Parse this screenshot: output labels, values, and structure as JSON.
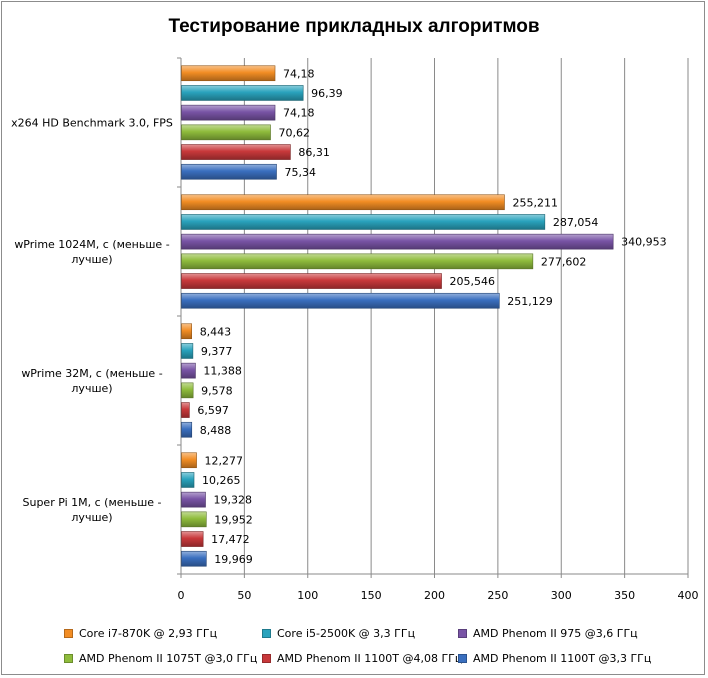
{
  "chart_data": {
    "type": "bar",
    "orientation": "horizontal",
    "title": "Тестирование прикладных алгоритмов",
    "categories": [
      "x264 HD Benchmark 3.0, FPS",
      "wPrime 1024M, с (меньше - лучше)",
      "wPrime 32M, с (меньше - лучше)",
      "Super Pi 1M, с (меньше - лучше)"
    ],
    "category_lines": [
      [
        "x264 HD Benchmark 3.0, FPS"
      ],
      [
        "wPrime 1024M, с (меньше -",
        "лучше)"
      ],
      [
        "wPrime 32M, с (меньше -",
        "лучше)"
      ],
      [
        "Super Pi 1M, с (меньше -",
        "лучше)"
      ]
    ],
    "series": [
      {
        "name": "Core i7-870K @ 2,93 ГГц",
        "color": "#f28d24",
        "values": [
          74.18,
          255.211,
          8.443,
          12.277
        ],
        "labels": [
          "74,18",
          "255,211",
          "8,443",
          "12,277"
        ]
      },
      {
        "name": "Core i5-2500K @ 3,3 ГГц",
        "color": "#2aa3bd",
        "values": [
          96.39,
          287.054,
          9.377,
          10.265
        ],
        "labels": [
          "96,39",
          "287,054",
          "9,377",
          "10,265"
        ]
      },
      {
        "name": "AMD Phenom II 975 @3,6 ГГц",
        "color": "#7954a6",
        "values": [
          74.18,
          340.953,
          11.388,
          19.328
        ],
        "labels": [
          "74,18",
          "340,953",
          "11,388",
          "19,328"
        ]
      },
      {
        "name": "AMD Phenom II 1075T @3,0 ГГц",
        "color": "#8fbc3c",
        "values": [
          70.62,
          277.602,
          9.578,
          19.952
        ],
        "labels": [
          "70,62",
          "277,602",
          "9,578",
          "19,952"
        ]
      },
      {
        "name": "AMD Phenom II 1100T @4,08 ГГц",
        "color": "#c8383a",
        "values": [
          86.31,
          205.546,
          6.597,
          17.472
        ],
        "labels": [
          "86,31",
          "205,546",
          "6,597",
          "17,472"
        ]
      },
      {
        "name": "AMD Phenom II 1100T @3,3 ГГц",
        "color": "#3a6fbf",
        "values": [
          75.34,
          251.129,
          8.488,
          19.969
        ],
        "labels": [
          "75,34",
          "251,129",
          "8,488",
          "19,969"
        ]
      }
    ],
    "xlim": [
      0,
      400
    ],
    "xticks": [
      0,
      50,
      100,
      150,
      200,
      250,
      300,
      350,
      400
    ],
    "grid": true,
    "legend_position": "bottom"
  }
}
